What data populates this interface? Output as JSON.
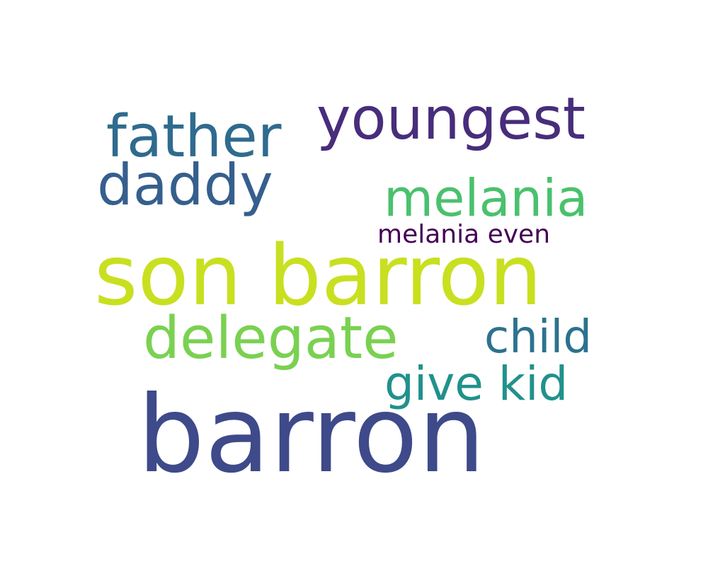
{
  "words": [
    {
      "text": "youngest",
      "color": "#472d7b"
    },
    {
      "text": "father",
      "color": "#2f6b8e"
    },
    {
      "text": "daddy",
      "color": "#355f8d"
    },
    {
      "text": "melania",
      "color": "#4ac16d"
    },
    {
      "text": "melania even",
      "color": "#440154"
    },
    {
      "text": "son barron",
      "color": "#c8e020"
    },
    {
      "text": "delegate",
      "color": "#7ad151"
    },
    {
      "text": "child",
      "color": "#2c728e"
    },
    {
      "text": "give kid",
      "color": "#21918c"
    },
    {
      "text": "barron",
      "color": "#3e4a89"
    }
  ]
}
